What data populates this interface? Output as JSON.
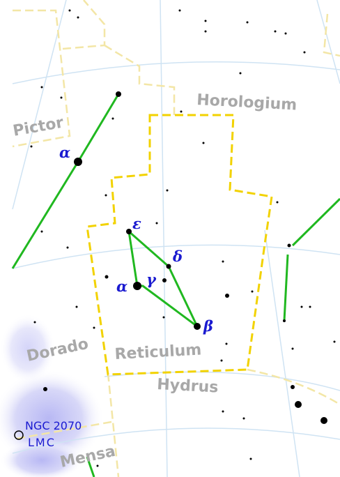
{
  "constellations": [
    {
      "label": "Horologium"
    },
    {
      "label": "Pictor"
    },
    {
      "label": "Dorado"
    },
    {
      "label": "Reticulum"
    },
    {
      "label": "Hydrus"
    },
    {
      "label": "Mensa"
    }
  ],
  "stars": [
    {
      "label": "α"
    },
    {
      "label": "ε"
    },
    {
      "label": "δ"
    },
    {
      "label": "γ"
    },
    {
      "label": "α"
    },
    {
      "label": "β"
    }
  ],
  "objects": [
    {
      "label": "NGC 2070"
    },
    {
      "label": "LMC"
    }
  ]
}
